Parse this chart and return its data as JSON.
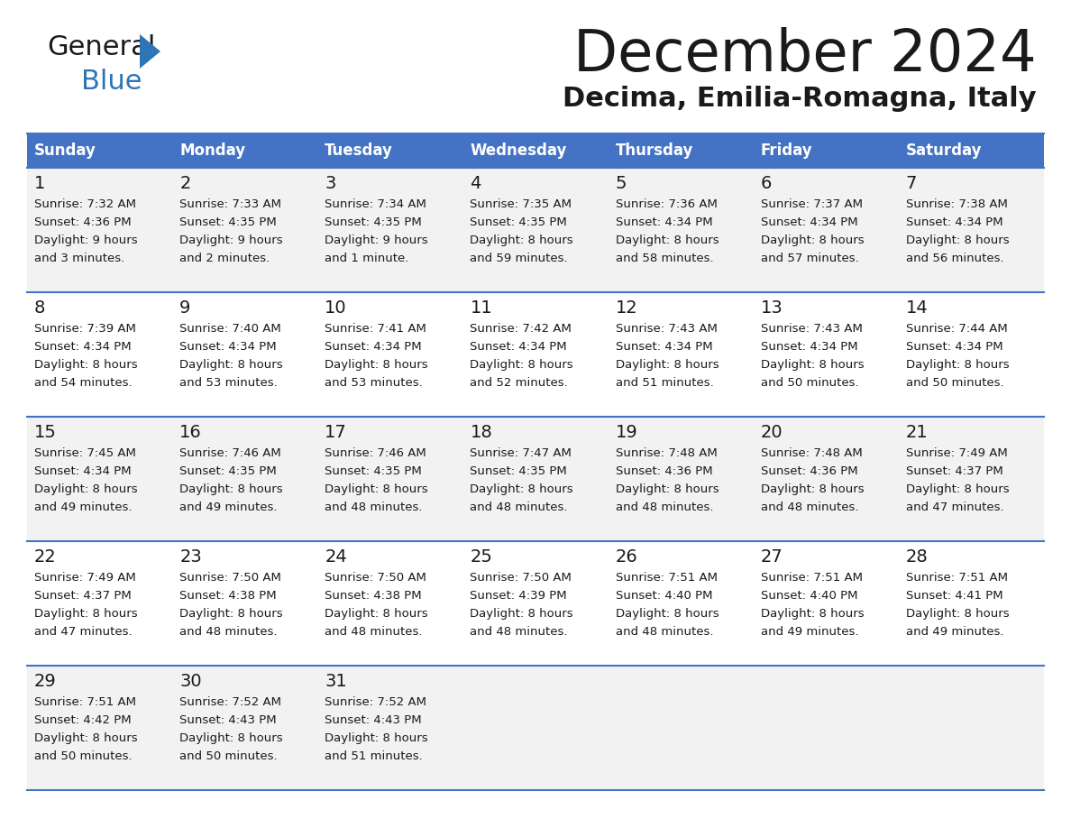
{
  "title": "December 2024",
  "subtitle": "Decima, Emilia-Romagna, Italy",
  "header_bg": "#4472C4",
  "header_text_color": "#FFFFFF",
  "row_bg_light": "#F2F2F2",
  "row_bg_white": "#FFFFFF",
  "border_color": "#4472C4",
  "days_of_week": [
    "Sunday",
    "Monday",
    "Tuesday",
    "Wednesday",
    "Thursday",
    "Friday",
    "Saturday"
  ],
  "weeks": [
    [
      {
        "day": 1,
        "sunrise": "7:32 AM",
        "sunset": "4:36 PM",
        "daylight": "9 hours",
        "daylight2": "and 3 minutes."
      },
      {
        "day": 2,
        "sunrise": "7:33 AM",
        "sunset": "4:35 PM",
        "daylight": "9 hours",
        "daylight2": "and 2 minutes."
      },
      {
        "day": 3,
        "sunrise": "7:34 AM",
        "sunset": "4:35 PM",
        "daylight": "9 hours",
        "daylight2": "and 1 minute."
      },
      {
        "day": 4,
        "sunrise": "7:35 AM",
        "sunset": "4:35 PM",
        "daylight": "8 hours",
        "daylight2": "and 59 minutes."
      },
      {
        "day": 5,
        "sunrise": "7:36 AM",
        "sunset": "4:34 PM",
        "daylight": "8 hours",
        "daylight2": "and 58 minutes."
      },
      {
        "day": 6,
        "sunrise": "7:37 AM",
        "sunset": "4:34 PM",
        "daylight": "8 hours",
        "daylight2": "and 57 minutes."
      },
      {
        "day": 7,
        "sunrise": "7:38 AM",
        "sunset": "4:34 PM",
        "daylight": "8 hours",
        "daylight2": "and 56 minutes."
      }
    ],
    [
      {
        "day": 8,
        "sunrise": "7:39 AM",
        "sunset": "4:34 PM",
        "daylight": "8 hours",
        "daylight2": "and 54 minutes."
      },
      {
        "day": 9,
        "sunrise": "7:40 AM",
        "sunset": "4:34 PM",
        "daylight": "8 hours",
        "daylight2": "and 53 minutes."
      },
      {
        "day": 10,
        "sunrise": "7:41 AM",
        "sunset": "4:34 PM",
        "daylight": "8 hours",
        "daylight2": "and 53 minutes."
      },
      {
        "day": 11,
        "sunrise": "7:42 AM",
        "sunset": "4:34 PM",
        "daylight": "8 hours",
        "daylight2": "and 52 minutes."
      },
      {
        "day": 12,
        "sunrise": "7:43 AM",
        "sunset": "4:34 PM",
        "daylight": "8 hours",
        "daylight2": "and 51 minutes."
      },
      {
        "day": 13,
        "sunrise": "7:43 AM",
        "sunset": "4:34 PM",
        "daylight": "8 hours",
        "daylight2": "and 50 minutes."
      },
      {
        "day": 14,
        "sunrise": "7:44 AM",
        "sunset": "4:34 PM",
        "daylight": "8 hours",
        "daylight2": "and 50 minutes."
      }
    ],
    [
      {
        "day": 15,
        "sunrise": "7:45 AM",
        "sunset": "4:34 PM",
        "daylight": "8 hours",
        "daylight2": "and 49 minutes."
      },
      {
        "day": 16,
        "sunrise": "7:46 AM",
        "sunset": "4:35 PM",
        "daylight": "8 hours",
        "daylight2": "and 49 minutes."
      },
      {
        "day": 17,
        "sunrise": "7:46 AM",
        "sunset": "4:35 PM",
        "daylight": "8 hours",
        "daylight2": "and 48 minutes."
      },
      {
        "day": 18,
        "sunrise": "7:47 AM",
        "sunset": "4:35 PM",
        "daylight": "8 hours",
        "daylight2": "and 48 minutes."
      },
      {
        "day": 19,
        "sunrise": "7:48 AM",
        "sunset": "4:36 PM",
        "daylight": "8 hours",
        "daylight2": "and 48 minutes."
      },
      {
        "day": 20,
        "sunrise": "7:48 AM",
        "sunset": "4:36 PM",
        "daylight": "8 hours",
        "daylight2": "and 48 minutes."
      },
      {
        "day": 21,
        "sunrise": "7:49 AM",
        "sunset": "4:37 PM",
        "daylight": "8 hours",
        "daylight2": "and 47 minutes."
      }
    ],
    [
      {
        "day": 22,
        "sunrise": "7:49 AM",
        "sunset": "4:37 PM",
        "daylight": "8 hours",
        "daylight2": "and 47 minutes."
      },
      {
        "day": 23,
        "sunrise": "7:50 AM",
        "sunset": "4:38 PM",
        "daylight": "8 hours",
        "daylight2": "and 48 minutes."
      },
      {
        "day": 24,
        "sunrise": "7:50 AM",
        "sunset": "4:38 PM",
        "daylight": "8 hours",
        "daylight2": "and 48 minutes."
      },
      {
        "day": 25,
        "sunrise": "7:50 AM",
        "sunset": "4:39 PM",
        "daylight": "8 hours",
        "daylight2": "and 48 minutes."
      },
      {
        "day": 26,
        "sunrise": "7:51 AM",
        "sunset": "4:40 PM",
        "daylight": "8 hours",
        "daylight2": "and 48 minutes."
      },
      {
        "day": 27,
        "sunrise": "7:51 AM",
        "sunset": "4:40 PM",
        "daylight": "8 hours",
        "daylight2": "and 49 minutes."
      },
      {
        "day": 28,
        "sunrise": "7:51 AM",
        "sunset": "4:41 PM",
        "daylight": "8 hours",
        "daylight2": "and 49 minutes."
      }
    ],
    [
      {
        "day": 29,
        "sunrise": "7:51 AM",
        "sunset": "4:42 PM",
        "daylight": "8 hours",
        "daylight2": "and 50 minutes."
      },
      {
        "day": 30,
        "sunrise": "7:52 AM",
        "sunset": "4:43 PM",
        "daylight": "8 hours",
        "daylight2": "and 50 minutes."
      },
      {
        "day": 31,
        "sunrise": "7:52 AM",
        "sunset": "4:43 PM",
        "daylight": "8 hours",
        "daylight2": "and 51 minutes."
      },
      null,
      null,
      null,
      null
    ]
  ]
}
